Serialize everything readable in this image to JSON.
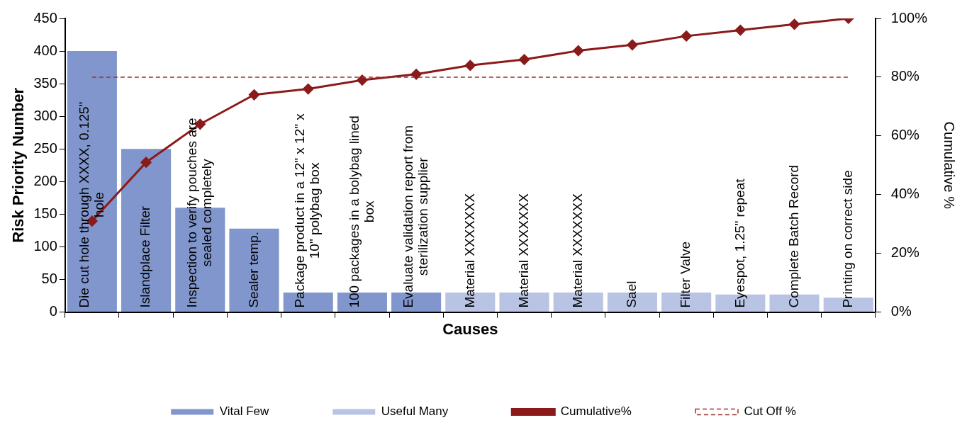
{
  "chart_data": {
    "type": "bar",
    "xlabel": "Causes",
    "ylabel": "Risk Priority Number",
    "y2label": "Cumulative %",
    "categories": [
      "Die cut hole through XXXX, 0.125\" hole",
      "Islandplace Filter",
      "Inspection to verify pouches are sealed completely",
      "Sealer temp.",
      "Package product in a 12\" x 12\" x 10\" polybag box",
      "100 packages in a bolybag lined box",
      "Evaluate validation report from sterilization supplier",
      "Material XXXXXXX",
      "Material XXXXXXX",
      "Material XXXXXXX",
      "Sael",
      "Filter Valve",
      "Eyespot, 1.25\" repeat",
      "Complete Batch Record",
      "Printing on correct side"
    ],
    "series": [
      {
        "name": "Vital Few",
        "color": "#8096cc",
        "values": [
          400,
          250,
          160,
          128,
          30,
          30,
          30,
          null,
          null,
          null,
          null,
          null,
          null,
          null,
          null
        ]
      },
      {
        "name": "Useful Many",
        "color": "#b9c3e4",
        "values": [
          null,
          null,
          null,
          null,
          null,
          null,
          null,
          30,
          30,
          30,
          30,
          30,
          27,
          27,
          22
        ]
      },
      {
        "name": "Cumulative%",
        "type": "line",
        "axis": "y2",
        "color": "#8b1a1a",
        "marker": "diamond",
        "values": [
          31,
          51,
          64,
          74,
          76,
          79,
          81,
          84,
          86,
          89,
          91,
          94,
          96,
          98,
          100
        ]
      }
    ],
    "ref_lines": [
      {
        "axis": "y2",
        "value": 80,
        "label": "Cut Off %",
        "color": "#a0302a",
        "line_style": "dashed"
      }
    ],
    "ylim": [
      0,
      450
    ],
    "yticks": [
      0,
      50,
      100,
      150,
      200,
      250,
      300,
      350,
      400,
      450
    ],
    "y2lim": [
      0,
      100
    ],
    "y2ticks": [
      {
        "value": 0,
        "label": "0%"
      },
      {
        "value": 20,
        "label": "20%"
      },
      {
        "value": 40,
        "label": "40%"
      },
      {
        "value": 60,
        "label": "60%"
      },
      {
        "value": 80,
        "label": "80%"
      },
      {
        "value": 100,
        "label": "100%"
      }
    ],
    "grid": false,
    "legend": "bottom"
  }
}
